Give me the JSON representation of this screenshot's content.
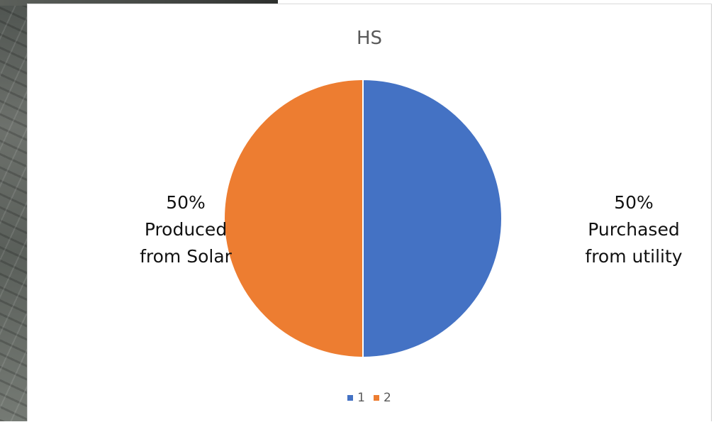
{
  "chart_data": {
    "type": "pie",
    "title": "HS",
    "slices": [
      {
        "name": "1",
        "value": 50,
        "percent_label": "50%",
        "label_lines": [
          "Purchased",
          "from utility"
        ],
        "color": "#4472c4"
      },
      {
        "name": "2",
        "value": 50,
        "percent_label": "50%",
        "label_lines": [
          "Produced",
          "from Solar"
        ],
        "color": "#ed7d31"
      }
    ],
    "legend": {
      "placement": "bottom",
      "entries": [
        "1",
        "2"
      ]
    }
  }
}
